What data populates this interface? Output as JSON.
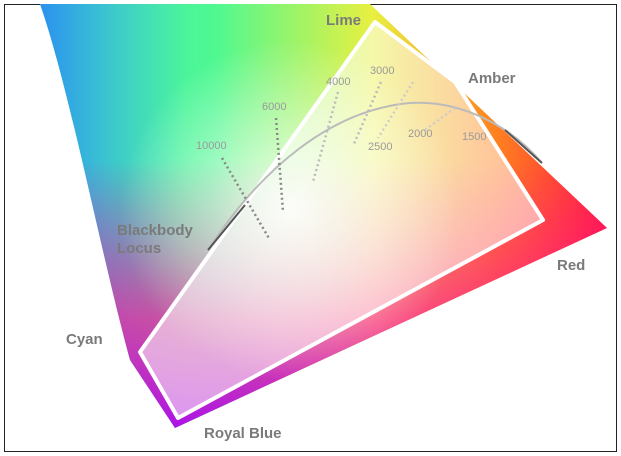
{
  "primaries": {
    "lime": "Lime",
    "amber": "Amber",
    "red": "Red",
    "cyan": "Cyan",
    "royal_blue": "Royal Blue"
  },
  "blackbody_locus": [
    "Blackbody",
    "Locus"
  ],
  "cct_labels": [
    "10000",
    "6000",
    "4000",
    "3000",
    "2500",
    "2000",
    "1500"
  ]
}
